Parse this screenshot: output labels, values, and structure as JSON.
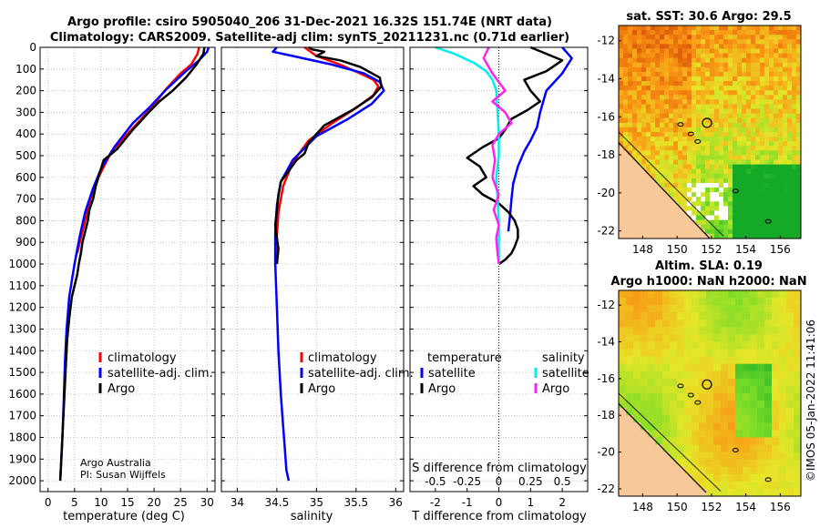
{
  "figure": {
    "title_line1": "Argo profile: csiro 5905040_206 31-Dec-2021 16.32S 151.74E (NRT data)",
    "title_line2": "Climatology: CARS2009. Satellite-adj clim: synTS_20211231.nc (0.71d earlier)",
    "credit_line1": "Argo Australia",
    "credit_line2": "PI: Susan Wijffels",
    "side_stamp": "©IMOS 05-Jan-2022 11:41:06"
  },
  "colors": {
    "climatology": "#ff0000",
    "satellite": "#0000ff",
    "argo": "#000000",
    "diff_temperature_satellite": "#00eeee",
    "diff_salinity_argo": "#ff22ee",
    "land": "#f8c898",
    "coast": "#000000"
  },
  "chart_data": [
    {
      "id": "temperature",
      "type": "line",
      "xlabel": "temperature (deg C)",
      "ylabel": "depth",
      "xlim": [
        -1.5,
        31.5
      ],
      "ylim": [
        0,
        2050
      ],
      "xticks": [
        0,
        5,
        10,
        15,
        20,
        25,
        30
      ],
      "yticks": [
        0,
        100,
        200,
        300,
        400,
        500,
        600,
        700,
        800,
        900,
        1000,
        1100,
        1200,
        1300,
        1400,
        1500,
        1600,
        1700,
        1800,
        1900,
        2000
      ],
      "legend": [
        "climatology",
        "satellite-adj. clim.",
        "Argo"
      ],
      "series": [
        {
          "name": "climatology",
          "color_key": "climatology",
          "x": [
            28.5,
            28.2,
            27.0,
            25.0,
            22.0,
            19.5,
            16.5,
            12.0,
            9.5,
            8.0,
            7.0,
            6.0,
            5.5
          ],
          "y": [
            0,
            30,
            80,
            120,
            200,
            280,
            360,
            480,
            600,
            700,
            800,
            900,
            950
          ]
        },
        {
          "name": "satellite-adj. clim.",
          "color_key": "satellite",
          "x": [
            30.3,
            30.0,
            28.5,
            26.0,
            22.5,
            19.0,
            16.0,
            12.5,
            10.0,
            8.5,
            7.0,
            6.0,
            5.0,
            4.0,
            3.5,
            3.2,
            3.0,
            2.8,
            2.6,
            2.4,
            2.3
          ],
          "y": [
            0,
            20,
            60,
            110,
            190,
            280,
            350,
            460,
            560,
            650,
            760,
            870,
            1000,
            1150,
            1300,
            1450,
            1600,
            1750,
            1850,
            1950,
            2000
          ]
        },
        {
          "name": "Argo",
          "color_key": "argo",
          "x": [
            29.5,
            29.3,
            28.0,
            26.0,
            23.5,
            21.0,
            19.0,
            16.0,
            13.0,
            10.5,
            9.5,
            9.0,
            8.5,
            7.8,
            7.5,
            7.0,
            6.5,
            6.2,
            5.8,
            5.5,
            5.0,
            4.5,
            4.0,
            3.6,
            3.3,
            3.0,
            2.8,
            2.6,
            2.4,
            2.3
          ],
          "y": [
            0,
            30,
            80,
            140,
            200,
            250,
            300,
            380,
            470,
            520,
            600,
            640,
            700,
            750,
            800,
            850,
            900,
            950,
            1000,
            1050,
            1100,
            1150,
            1250,
            1350,
            1500,
            1650,
            1750,
            1850,
            1950,
            2000
          ]
        }
      ]
    },
    {
      "id": "salinity",
      "type": "line",
      "xlabel": "salinity",
      "ylabel": "depth",
      "xlim": [
        33.8,
        36.1
      ],
      "ylim": [
        0,
        2050
      ],
      "xticks": [
        34,
        34.5,
        35,
        35.5,
        36
      ],
      "legend": [
        "climatology",
        "satellite-adj. clim.",
        "Argo"
      ],
      "series": [
        {
          "name": "climatology",
          "color_key": "climatology",
          "x": [
            34.85,
            35.0,
            35.3,
            35.55,
            35.72,
            35.78,
            35.72,
            35.5,
            35.2,
            34.9,
            34.7,
            34.58,
            34.52,
            34.5,
            34.5,
            34.5
          ],
          "y": [
            0,
            40,
            80,
            120,
            150,
            180,
            220,
            280,
            350,
            430,
            530,
            640,
            760,
            870,
            950,
            1000
          ]
        },
        {
          "name": "satellite-adj. clim.",
          "color_key": "satellite",
          "x": [
            34.5,
            34.45,
            34.7,
            35.2,
            35.6,
            35.8,
            35.85,
            35.7,
            35.4,
            35.0,
            34.7,
            34.55,
            34.5,
            34.48,
            34.48,
            34.5,
            34.52,
            34.55,
            34.58,
            34.6,
            34.62,
            34.65
          ],
          "y": [
            0,
            20,
            40,
            80,
            120,
            160,
            200,
            260,
            330,
            410,
            520,
            620,
            730,
            860,
            1000,
            1200,
            1400,
            1600,
            1750,
            1850,
            1950,
            2000
          ]
        },
        {
          "name": "Argo",
          "color_key": "argo",
          "x": [
            34.9,
            34.95,
            35.1,
            35.0,
            35.3,
            35.55,
            35.8,
            35.82,
            35.7,
            35.45,
            35.1,
            34.9,
            34.85,
            34.75,
            34.65,
            34.55,
            34.52,
            34.5,
            34.48,
            34.5,
            34.52,
            34.5
          ],
          "y": [
            0,
            10,
            20,
            40,
            60,
            90,
            140,
            180,
            230,
            290,
            360,
            440,
            490,
            520,
            570,
            620,
            680,
            750,
            820,
            880,
            930,
            1000
          ]
        }
      ]
    },
    {
      "id": "difference",
      "type": "line",
      "xlabel": "T difference from climatology",
      "top_label": "S difference from climatology",
      "ylim": [
        0,
        2050
      ],
      "xlim": [
        -2.8,
        2.8
      ],
      "xticks_T": [
        -2,
        -1,
        0,
        1,
        2
      ],
      "xticks_S": [
        -0.5,
        -0.25,
        0,
        0.25,
        0.5
      ],
      "xlim_S": [
        -0.7,
        0.7
      ],
      "legend_headers": [
        "temperature",
        "salinity"
      ],
      "legend": [
        {
          "group": "temperature",
          "label": "satellite",
          "color_key": "satellite"
        },
        {
          "group": "temperature",
          "label": "Argo",
          "color_key": "argo"
        },
        {
          "group": "salinity",
          "label": "satellite",
          "color_key": "diff_temperature_satellite"
        },
        {
          "group": "salinity",
          "label": "Argo",
          "color_key": "diff_salinity_argo"
        }
      ],
      "series": [
        {
          "name": "temperature satellite",
          "color_key": "satellite",
          "scale": "T",
          "x": [
            2.0,
            2.3,
            2.0,
            1.5,
            1.3,
            1.2,
            1.0,
            0.8,
            0.6,
            0.45,
            0.4,
            0.35,
            0.3
          ],
          "y": [
            0,
            50,
            120,
            200,
            300,
            370,
            430,
            480,
            550,
            630,
            700,
            780,
            850
          ]
        },
        {
          "name": "temperature Argo",
          "color_key": "argo",
          "scale": "T",
          "x": [
            1.0,
            1.5,
            2.0,
            1.5,
            0.8,
            1.0,
            1.3,
            0.9,
            0.4,
            0.2,
            0.0,
            -0.5,
            -1.0,
            -0.6,
            -0.4,
            -0.8,
            -0.5,
            0.0,
            0.3,
            0.5,
            0.6,
            0.6,
            0.5,
            0.4,
            0.2,
            0.0
          ],
          "y": [
            0,
            30,
            60,
            110,
            150,
            200,
            250,
            290,
            330,
            380,
            420,
            460,
            510,
            550,
            600,
            640,
            680,
            720,
            760,
            800,
            840,
            880,
            920,
            950,
            980,
            1000
          ]
        },
        {
          "name": "salinity satellite",
          "color_key": "diff_temperature_satellite",
          "scale": "S",
          "x": [
            -0.5,
            -0.35,
            -0.2,
            -0.1,
            -0.05,
            -0.02,
            -0.01,
            0.0,
            0.0,
            -0.02,
            -0.01,
            0.0,
            0.0,
            0.0
          ],
          "y": [
            0,
            30,
            70,
            110,
            150,
            200,
            300,
            400,
            500,
            600,
            700,
            800,
            900,
            1000
          ]
        },
        {
          "name": "salinity Argo",
          "color_key": "diff_salinity_argo",
          "scale": "S",
          "x": [
            -0.08,
            -0.12,
            -0.05,
            0.05,
            -0.05,
            0.05,
            0.1,
            0.0,
            -0.05,
            -0.03,
            -0.05,
            0.0,
            -0.04,
            0.0,
            -0.02,
            -0.01,
            0.0
          ],
          "y": [
            0,
            50,
            120,
            200,
            250,
            300,
            350,
            400,
            450,
            520,
            600,
            680,
            750,
            820,
            880,
            950,
            1000
          ]
        }
      ]
    },
    {
      "id": "sst_map",
      "type": "heatmap",
      "title": "sat. SST: 30.6 Argo: 29.5",
      "xticks": [
        148,
        150,
        152,
        154,
        156
      ],
      "yticks": [
        -12,
        -14,
        -16,
        -18,
        -20,
        -22
      ],
      "xlim": [
        146.6,
        157.2
      ],
      "ylim": [
        -22.4,
        -11.2
      ],
      "argo_position": {
        "lon": 151.74,
        "lat": -16.32
      }
    },
    {
      "id": "sla_map",
      "type": "heatmap",
      "title_line1": "Altim. SLA: 0.19",
      "title_line2": "Argo h1000: NaN h2000: NaN",
      "xticks": [
        148,
        150,
        152,
        154,
        156
      ],
      "yticks": [
        -12,
        -14,
        -16,
        -18,
        -20,
        -22
      ],
      "xlim": [
        146.6,
        157.2
      ],
      "ylim": [
        -22.4,
        -11.2
      ],
      "argo_position": {
        "lon": 151.74,
        "lat": -16.32
      }
    }
  ]
}
